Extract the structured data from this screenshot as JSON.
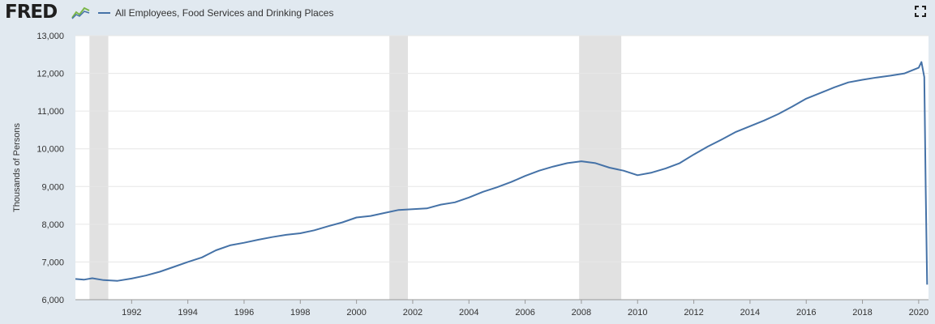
{
  "header": {
    "logo_text": "FRED",
    "legend_label": "All Employees, Food Services and Drinking Places",
    "series_color": "#4572a7",
    "recession_color": "#e1e1e1",
    "fullscreen_icon": "expand-icon"
  },
  "chart_data": {
    "type": "line",
    "xlabel": "",
    "ylabel": "Thousands of Persons",
    "xlim": [
      1990.0,
      2020.35
    ],
    "ylim": [
      6000,
      13000
    ],
    "yticks": [
      6000,
      7000,
      8000,
      9000,
      10000,
      11000,
      12000,
      13000
    ],
    "ytick_labels": [
      "6,000",
      "7,000",
      "8,000",
      "9,000",
      "10,000",
      "11,000",
      "12,000",
      "13,000"
    ],
    "xticks": [
      1992,
      1994,
      1996,
      1998,
      2000,
      2002,
      2004,
      2006,
      2008,
      2010,
      2012,
      2014,
      2016,
      2018,
      2020
    ],
    "xtick_labels": [
      "1992",
      "1994",
      "1996",
      "1998",
      "2000",
      "2002",
      "2004",
      "2006",
      "2008",
      "2010",
      "2012",
      "2014",
      "2016",
      "2018",
      "2020"
    ],
    "grid": "horizontal",
    "recessions": [
      [
        1990.5,
        1991.17
      ],
      [
        2001.17,
        2001.83
      ],
      [
        2007.92,
        2009.42
      ]
    ],
    "series": [
      {
        "name": "All Employees, Food Services and Drinking Places",
        "x": [
          1990.0,
          1990.3,
          1990.6,
          1991.0,
          1991.5,
          1992.0,
          1992.5,
          1993.0,
          1993.5,
          1994.0,
          1994.5,
          1995.0,
          1995.5,
          1996.0,
          1996.5,
          1997.0,
          1997.5,
          1998.0,
          1998.5,
          1999.0,
          1999.5,
          2000.0,
          2000.5,
          2001.0,
          2001.5,
          2002.0,
          2002.5,
          2003.0,
          2003.5,
          2004.0,
          2004.5,
          2005.0,
          2005.5,
          2006.0,
          2006.5,
          2007.0,
          2007.5,
          2008.0,
          2008.5,
          2009.0,
          2009.5,
          2010.0,
          2010.5,
          2011.0,
          2011.5,
          2012.0,
          2012.5,
          2013.0,
          2013.5,
          2014.0,
          2014.5,
          2015.0,
          2015.5,
          2016.0,
          2016.5,
          2017.0,
          2017.5,
          2018.0,
          2018.5,
          2019.0,
          2019.5,
          2020.0,
          2020.1,
          2020.2,
          2020.25,
          2020.3
        ],
        "values": [
          6550,
          6530,
          6570,
          6520,
          6500,
          6560,
          6640,
          6740,
          6870,
          7000,
          7120,
          7310,
          7440,
          7510,
          7590,
          7660,
          7720,
          7760,
          7840,
          7950,
          8050,
          8180,
          8220,
          8300,
          8380,
          8400,
          8420,
          8520,
          8580,
          8710,
          8860,
          8980,
          9120,
          9280,
          9420,
          9530,
          9620,
          9670,
          9620,
          9500,
          9420,
          9300,
          9370,
          9480,
          9620,
          9850,
          10060,
          10250,
          10450,
          10600,
          10750,
          10920,
          11120,
          11330,
          11480,
          11630,
          11760,
          11830,
          11890,
          11940,
          12000,
          12150,
          12300,
          11900,
          9000,
          6400
        ]
      }
    ]
  }
}
